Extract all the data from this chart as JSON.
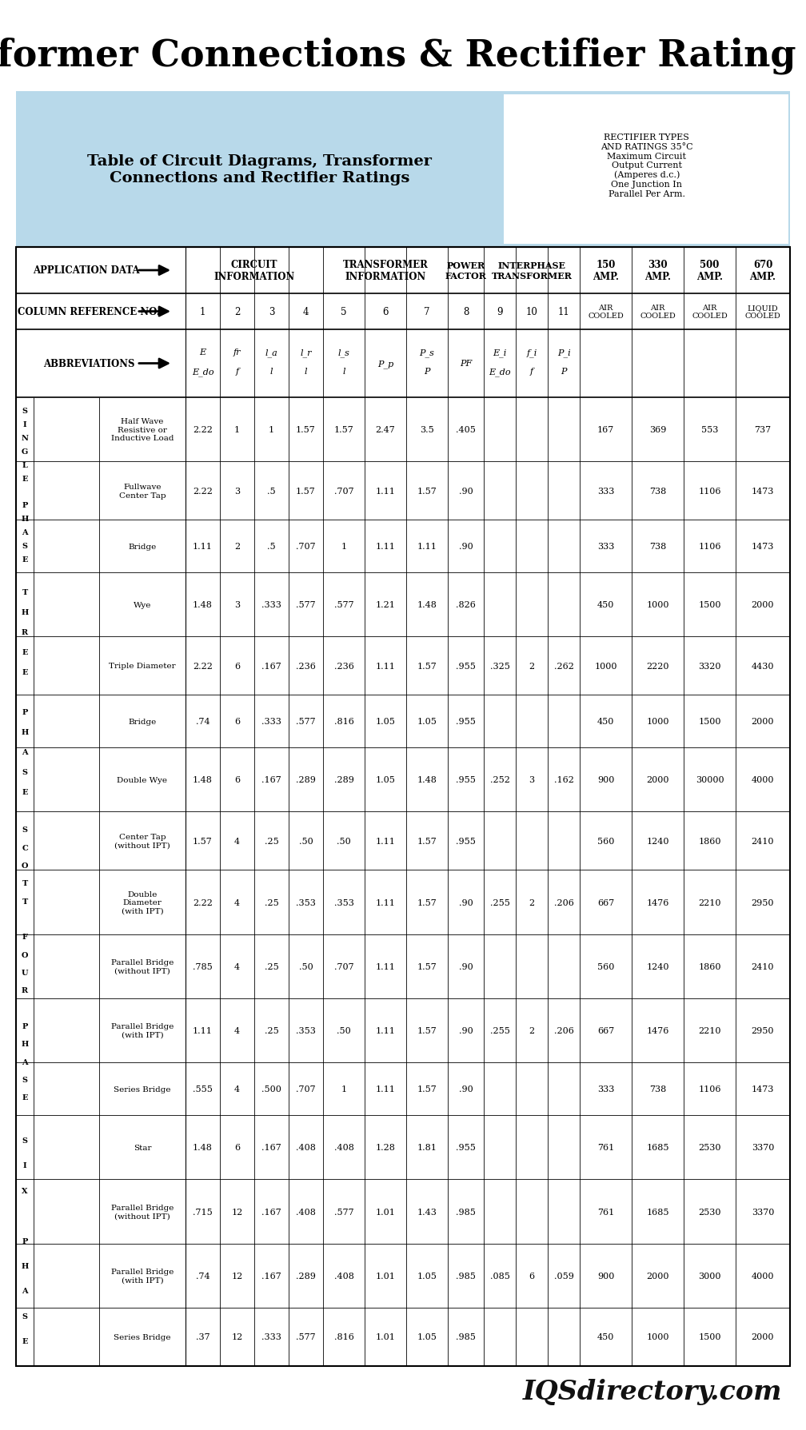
{
  "title": "Transformer Connections & Rectifier Rating Chart",
  "subtitle_left": "Table of Circuit Diagrams, Transformer\nConnections and Rectifier Ratings",
  "subtitle_right": "RECTIFIER TYPES\nAND RATINGS 35°C\nMaximum Circuit\nOutput Current\n(Amperes d.c.)\nOne Junction In\nParallel Per Arm.",
  "header_bg": "#b8d9ea",
  "footer_text": "IQSdirectory.com",
  "rows": [
    {
      "phase": "SINGLE PHASE",
      "phase_letters": [
        "S",
        "I",
        "N",
        "G",
        "L",
        "E",
        "",
        "P",
        "H",
        "A",
        "S",
        "E"
      ],
      "name": "Half Wave\nResistive or\nInductive Load",
      "c1": "2.22",
      "c2": "1",
      "c3": "1",
      "c4": "1.57",
      "c5": "1.57",
      "c6": "2.47",
      "c7": "3.5",
      "c8": ".405",
      "c9": "",
      "c10": "",
      "c11": "",
      "r150": "167",
      "r330": "369",
      "r500": "553",
      "r670": "737"
    },
    {
      "phase": "SINGLE PHASE",
      "name": "Fullwave\nCenter Tap",
      "c1": "2.22",
      "c2": "3",
      "c3": ".5",
      "c4": "1.57",
      "c5": ".707",
      "c6": "1.11",
      "c7": "1.57",
      "c8": ".90",
      "c9": "",
      "c10": "",
      "c11": "",
      "r150": "333",
      "r330": "738",
      "r500": "1106",
      "r670": "1473"
    },
    {
      "phase": "SINGLE PHASE",
      "name": "Bridge",
      "c1": "1.11",
      "c2": "2",
      "c3": ".5",
      "c4": ".707",
      "c5": "1",
      "c6": "1.11",
      "c7": "1.11",
      "c8": ".90",
      "c9": "",
      "c10": "",
      "c11": "",
      "r150": "333",
      "r330": "738",
      "r500": "1106",
      "r670": "1473"
    },
    {
      "phase": "THREE PHASE",
      "phase_letters": [
        "T",
        "H",
        "R",
        "E",
        "E",
        "",
        "P",
        "H",
        "A",
        "S",
        "E"
      ],
      "name": "Wye",
      "c1": "1.48",
      "c2": "3",
      "c3": ".333",
      "c4": ".577",
      "c5": ".577",
      "c6": "1.21",
      "c7": "1.48",
      "c8": ".826",
      "c9": "",
      "c10": "",
      "c11": "",
      "r150": "450",
      "r330": "1000",
      "r500": "1500",
      "r670": "2000"
    },
    {
      "phase": "THREE PHASE",
      "name": "Triple Diameter",
      "c1": "2.22",
      "c2": "6",
      "c3": ".167",
      "c4": ".236",
      "c5": ".236",
      "c6": "1.11",
      "c7": "1.57",
      "c8": ".955",
      "c9": ".325",
      "c10": "2",
      "c11": ".262",
      "r150": "1000",
      "r330": "2220",
      "r500": "3320",
      "r670": "4430"
    },
    {
      "phase": "THREE PHASE",
      "name": "Bridge",
      "c1": ".74",
      "c2": "6",
      "c3": ".333",
      "c4": ".577",
      "c5": ".816",
      "c6": "1.05",
      "c7": "1.05",
      "c8": ".955",
      "c9": "",
      "c10": "",
      "c11": "",
      "r150": "450",
      "r330": "1000",
      "r500": "1500",
      "r670": "2000"
    },
    {
      "phase": "THREE PHASE",
      "name": "Double Wye",
      "c1": "1.48",
      "c2": "6",
      "c3": ".167",
      "c4": ".289",
      "c5": ".289",
      "c6": "1.05",
      "c7": "1.48",
      "c8": ".955",
      "c9": ".252",
      "c10": "3",
      "c11": ".162",
      "r150": "900",
      "r330": "2000",
      "r500": "30000",
      "r670": "4000"
    },
    {
      "phase": "SCOTT FOUR PHASE",
      "phase_letters": [
        "S",
        "C",
        "O",
        "T",
        "T",
        "",
        "F",
        "O",
        "U",
        "R",
        "",
        "P",
        "H",
        "A",
        "S",
        "E"
      ],
      "name": "Center Tap\n(without IPT)",
      "c1": "1.57",
      "c2": "4",
      "c3": ".25",
      "c4": ".50",
      "c5": ".50",
      "c6": "1.11",
      "c7": "1.57",
      "c8": ".955",
      "c9": "",
      "c10": "",
      "c11": "",
      "r150": "560",
      "r330": "1240",
      "r500": "1860",
      "r670": "2410"
    },
    {
      "phase": "SCOTT FOUR PHASE",
      "name": "Double\nDiameter\n(with IPT)",
      "c1": "2.22",
      "c2": "4",
      "c3": ".25",
      "c4": ".353",
      "c5": ".353",
      "c6": "1.11",
      "c7": "1.57",
      "c8": ".90",
      "c9": ".255",
      "c10": "2",
      "c11": ".206",
      "r150": "667",
      "r330": "1476",
      "r500": "2210",
      "r670": "2950"
    },
    {
      "phase": "SCOTT FOUR PHASE",
      "name": "Parallel Bridge\n(without IPT)",
      "c1": ".785",
      "c2": "4",
      "c3": ".25",
      "c4": ".50",
      "c5": ".707",
      "c6": "1.11",
      "c7": "1.57",
      "c8": ".90",
      "c9": "",
      "c10": "",
      "c11": "",
      "r150": "560",
      "r330": "1240",
      "r500": "1860",
      "r670": "2410"
    },
    {
      "phase": "SCOTT FOUR PHASE",
      "name": "Parallel Bridge\n(with IPT)",
      "c1": "1.11",
      "c2": "4",
      "c3": ".25",
      "c4": ".353",
      "c5": ".50",
      "c6": "1.11",
      "c7": "1.57",
      "c8": ".90",
      "c9": ".255",
      "c10": "2",
      "c11": ".206",
      "r150": "667",
      "r330": "1476",
      "r500": "2210",
      "r670": "2950"
    },
    {
      "phase": "SCOTT FOUR PHASE",
      "name": "Series Bridge",
      "c1": ".555",
      "c2": "4",
      "c3": ".500",
      "c4": ".707",
      "c5": "1",
      "c6": "1.11",
      "c7": "1.57",
      "c8": ".90",
      "c9": "",
      "c10": "",
      "c11": "",
      "r150": "333",
      "r330": "738",
      "r500": "1106",
      "r670": "1473"
    },
    {
      "phase": "SIX PHASE",
      "phase_letters": [
        "S",
        "I",
        "X",
        "",
        "P",
        "H",
        "A",
        "S",
        "E"
      ],
      "name": "Star",
      "c1": "1.48",
      "c2": "6",
      "c3": ".167",
      "c4": ".408",
      "c5": ".408",
      "c6": "1.28",
      "c7": "1.81",
      "c8": ".955",
      "c9": "",
      "c10": "",
      "c11": "",
      "r150": "761",
      "r330": "1685",
      "r500": "2530",
      "r670": "3370"
    },
    {
      "phase": "SIX PHASE",
      "name": "Parallel Bridge\n(without IPT)",
      "c1": ".715",
      "c2": "12",
      "c3": ".167",
      "c4": ".408",
      "c5": ".577",
      "c6": "1.01",
      "c7": "1.43",
      "c8": ".985",
      "c9": "",
      "c10": "",
      "c11": "",
      "r150": "761",
      "r330": "1685",
      "r500": "2530",
      "r670": "3370"
    },
    {
      "phase": "SIX PHASE",
      "name": "Parallel Bridge\n(with IPT)",
      "c1": ".74",
      "c2": "12",
      "c3": ".167",
      "c4": ".289",
      "c5": ".408",
      "c6": "1.01",
      "c7": "1.05",
      "c8": ".985",
      "c9": ".085",
      "c10": "6",
      "c11": ".059",
      "r150": "900",
      "r330": "2000",
      "r500": "3000",
      "r670": "4000"
    },
    {
      "phase": "SIX PHASE",
      "name": "Series Bridge",
      "c1": ".37",
      "c2": "12",
      "c3": ".333",
      "c4": ".577",
      "c5": ".816",
      "c6": "1.01",
      "c7": "1.05",
      "c8": ".985",
      "c9": "",
      "c10": "",
      "c11": "",
      "r150": "450",
      "r330": "1000",
      "r500": "1500",
      "r670": "2000"
    }
  ],
  "phase_groups": [
    {
      "name": "SINGLE\nPHASE",
      "letters": [
        "S",
        "I",
        "N",
        "G",
        "L",
        "E",
        "",
        "P",
        "H",
        "A",
        "S",
        "E"
      ],
      "start": 0,
      "end": 3
    },
    {
      "name": "THREE\nPHASE",
      "letters": [
        "T",
        "H",
        "R",
        "E",
        "E",
        "",
        "P",
        "H",
        "A",
        "S",
        "E"
      ],
      "start": 3,
      "end": 7
    },
    {
      "name": "SCOTT\nFOUR\nPHASE",
      "letters": [
        "S",
        "C",
        "O",
        "T",
        "T",
        "",
        "F",
        "O",
        "U",
        "R",
        "",
        "P",
        "H",
        "A",
        "S",
        "E"
      ],
      "start": 7,
      "end": 12
    },
    {
      "name": "SIX\nPHASE",
      "letters": [
        "S",
        "I",
        "X",
        "",
        "P",
        "H",
        "A",
        "S",
        "E"
      ],
      "start": 12,
      "end": 16
    }
  ]
}
